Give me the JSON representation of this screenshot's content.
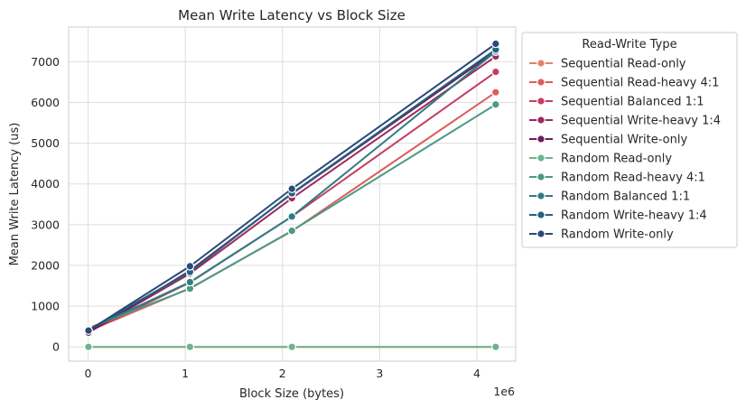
{
  "chart_data": {
    "type": "line",
    "title": "Mean Write Latency vs Block Size",
    "xlabel": "Block Size (bytes)",
    "ylabel": "Mean Write Latency (us)",
    "x_offset_label": "1e6",
    "xlim": [
      -0.2,
      4.4
    ],
    "ylim": [
      -350,
      7850
    ],
    "x_ticks": [
      0,
      1,
      2,
      3,
      4
    ],
    "x_tick_labels": [
      "0",
      "1",
      "2",
      "3",
      "4"
    ],
    "y_ticks": [
      0,
      1000,
      2000,
      3000,
      4000,
      5000,
      6000,
      7000
    ],
    "y_tick_labels": [
      "0",
      "1000",
      "2000",
      "3000",
      "4000",
      "5000",
      "6000",
      "7000"
    ],
    "grid": true,
    "legend_title": "Read-Write Type",
    "legend_position": "outside right",
    "x": [
      0.004096,
      1.048576,
      2.097152,
      4.194304
    ],
    "series": [
      {
        "name": "Sequential Read-only",
        "color": "#e8826a",
        "values": [
          0,
          0,
          0,
          0
        ]
      },
      {
        "name": "Sequential Read-heavy 4:1",
        "color": "#dd5e5a",
        "values": [
          390,
          1440,
          2840,
          6250
        ]
      },
      {
        "name": "Sequential Balanced 1:1",
        "color": "#c43e62",
        "values": [
          370,
          1580,
          3200,
          6750
        ]
      },
      {
        "name": "Sequential Write-heavy 1:4",
        "color": "#9c2a5e",
        "values": [
          360,
          1800,
          3650,
          7130
        ]
      },
      {
        "name": "Sequential Write-only",
        "color": "#6a1d5a",
        "values": [
          350,
          1870,
          3760,
          7250
        ]
      },
      {
        "name": "Random Read-only",
        "color": "#6cb48f",
        "values": [
          0,
          0,
          0,
          0
        ]
      },
      {
        "name": "Random Read-heavy 4:1",
        "color": "#4a9a85",
        "values": [
          460,
          1430,
          2850,
          5950
        ]
      },
      {
        "name": "Random Balanced 1:1",
        "color": "#2f7d82",
        "values": [
          430,
          1590,
          3200,
          7250
        ]
      },
      {
        "name": "Random Write-heavy 1:4",
        "color": "#245f7e",
        "values": [
          420,
          1840,
          3770,
          7300
        ]
      },
      {
        "name": "Random Write-only",
        "color": "#2a4a78",
        "values": [
          400,
          1980,
          3880,
          7440
        ]
      }
    ]
  }
}
